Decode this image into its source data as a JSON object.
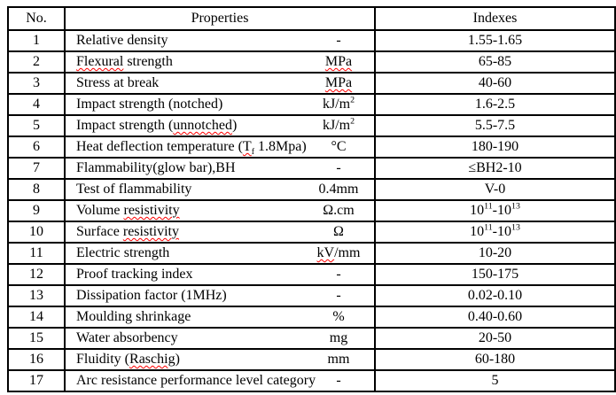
{
  "colors": {
    "border": "#000000",
    "text": "#000000",
    "squiggle": "#ff0000",
    "background": "#ffffff"
  },
  "table": {
    "headers": {
      "no": "No.",
      "properties": "Properties",
      "indexes": "Indexes"
    },
    "rows": [
      {
        "no": "1",
        "property": [
          {
            "t": "Relative density"
          }
        ],
        "unit": [
          {
            "t": "-"
          }
        ],
        "index": [
          {
            "t": "1.55-1.65"
          }
        ]
      },
      {
        "no": "2",
        "property": [
          {
            "t": "Flexural",
            "sq": true
          },
          {
            "t": " strength"
          }
        ],
        "unit": [
          {
            "t": "MPa",
            "sq": true
          }
        ],
        "index": [
          {
            "t": "65-85"
          }
        ]
      },
      {
        "no": "3",
        "property": [
          {
            "t": "Stress at break"
          }
        ],
        "unit": [
          {
            "t": "MPa",
            "sq": true
          }
        ],
        "index": [
          {
            "t": "40-60"
          }
        ]
      },
      {
        "no": "4",
        "property": [
          {
            "t": "Impact strength (notched)"
          }
        ],
        "unit": [
          {
            "t": "kJ/m"
          },
          {
            "t": "2",
            "sup": true
          }
        ],
        "index": [
          {
            "t": "1.6-2.5"
          }
        ]
      },
      {
        "no": "5",
        "property": [
          {
            "t": "Impact strength ("
          },
          {
            "t": "unnotched",
            "sq": true
          },
          {
            "t": ")"
          }
        ],
        "unit": [
          {
            "t": "kJ/m"
          },
          {
            "t": "2",
            "sup": true
          }
        ],
        "index": [
          {
            "t": "5.5-7.5"
          }
        ]
      },
      {
        "no": "6",
        "property": [
          {
            "t": "Heat deflection temperature ("
          },
          {
            "t": "T",
            "sq": true
          },
          {
            "t": "f",
            "sub": true,
            "sq": true
          },
          {
            "t": " 1.8Mpa)"
          }
        ],
        "unit": [
          {
            "t": "°C"
          }
        ],
        "index": [
          {
            "t": "180-190"
          }
        ]
      },
      {
        "no": "7",
        "property": [
          {
            "t": "Flammability(glow bar),BH"
          }
        ],
        "unit": [
          {
            "t": "-"
          }
        ],
        "index": [
          {
            "t": "≤BH2-10"
          }
        ]
      },
      {
        "no": "8",
        "property": [
          {
            "t": "Test of flammability"
          }
        ],
        "unit": [
          {
            "t": "0.4mm"
          }
        ],
        "index": [
          {
            "t": "V-0"
          }
        ]
      },
      {
        "no": "9",
        "property": [
          {
            "t": "Volume "
          },
          {
            "t": "resistivity",
            "sq": true
          }
        ],
        "unit": [
          {
            "t": "Ω.cm"
          }
        ],
        "index": [
          {
            "t": "10"
          },
          {
            "t": "11",
            "sup": true
          },
          {
            "t": "-10"
          },
          {
            "t": "13",
            "sup": true
          }
        ]
      },
      {
        "no": "10",
        "property": [
          {
            "t": "Surface "
          },
          {
            "t": "resistivity",
            "sq": true
          }
        ],
        "unit": [
          {
            "t": "Ω"
          }
        ],
        "index": [
          {
            "t": "10"
          },
          {
            "t": "11",
            "sup": true
          },
          {
            "t": "-10"
          },
          {
            "t": "13",
            "sup": true
          }
        ]
      },
      {
        "no": "11",
        "property": [
          {
            "t": "Electric strength"
          }
        ],
        "unit": [
          {
            "t": "kV",
            "sq": true
          },
          {
            "t": "/mm"
          }
        ],
        "index": [
          {
            "t": "10-20"
          }
        ]
      },
      {
        "no": "12",
        "property": [
          {
            "t": "Proof tracking index"
          }
        ],
        "unit": [
          {
            "t": "-"
          }
        ],
        "index": [
          {
            "t": "150-175"
          }
        ]
      },
      {
        "no": "13",
        "property": [
          {
            "t": "Dissipation factor (1MHz)"
          }
        ],
        "unit": [
          {
            "t": "-"
          }
        ],
        "index": [
          {
            "t": "0.02-0.10"
          }
        ]
      },
      {
        "no": "14",
        "property": [
          {
            "t": "Moulding shrinkage"
          }
        ],
        "unit": [
          {
            "t": "%"
          }
        ],
        "index": [
          {
            "t": "0.40-0.60"
          }
        ]
      },
      {
        "no": "15",
        "property": [
          {
            "t": "Water absorbency"
          }
        ],
        "unit": [
          {
            "t": "mg"
          }
        ],
        "index": [
          {
            "t": "20-50"
          }
        ]
      },
      {
        "no": "16",
        "property": [
          {
            "t": "Fluidity ("
          },
          {
            "t": "Raschig",
            "sq": true
          },
          {
            "t": ")"
          }
        ],
        "unit": [
          {
            "t": "mm"
          }
        ],
        "index": [
          {
            "t": "60-180"
          }
        ]
      },
      {
        "no": "17",
        "property": [
          {
            "t": "Arc resistance performance level category"
          }
        ],
        "unit": [
          {
            "t": "-"
          }
        ],
        "index": [
          {
            "t": "5"
          }
        ]
      }
    ]
  }
}
